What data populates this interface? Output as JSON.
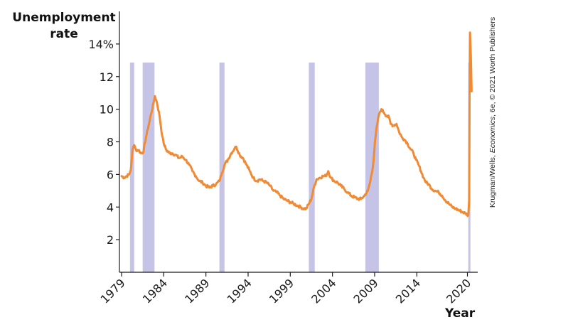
{
  "chart_data": {
    "type": "line",
    "ylabel_lines": [
      "Unemployment",
      "rate"
    ],
    "xlabel": "Year",
    "credit": {
      "prefix": "Krugman/Wells, ",
      "italic": "Economics",
      "suffix": ", 6e, © 2021 Worth Publishers"
    },
    "ylim": [
      0,
      16
    ],
    "xlim": [
      1979,
      2020.8
    ],
    "y_ticks": [
      {
        "value": 2,
        "label": "2"
      },
      {
        "value": 4,
        "label": "4"
      },
      {
        "value": 6,
        "label": "6"
      },
      {
        "value": 8,
        "label": "8"
      },
      {
        "value": 10,
        "label": "10"
      },
      {
        "value": 12,
        "label": "12"
      },
      {
        "value": 14,
        "label": "14%"
      }
    ],
    "x_ticks": [
      {
        "value": 1979,
        "label": "1979"
      },
      {
        "value": 1984,
        "label": "1984"
      },
      {
        "value": 1989,
        "label": "1989"
      },
      {
        "value": 1994,
        "label": "1994"
      },
      {
        "value": 1999,
        "label": "1999"
      },
      {
        "value": 2004,
        "label": "2004"
      },
      {
        "value": 2009,
        "label": "2009"
      },
      {
        "value": 2014,
        "label": "2014"
      },
      {
        "value": 2020,
        "label": "2020"
      }
    ],
    "grid": false,
    "recession_color": "#c6c4e6",
    "line_color": "#f08a34",
    "recessions": [
      {
        "start": 1980.0,
        "end": 1980.5
      },
      {
        "start": 1981.5,
        "end": 1982.9
      },
      {
        "start": 1990.6,
        "end": 1991.2
      },
      {
        "start": 2001.2,
        "end": 2001.9
      },
      {
        "start": 2007.9,
        "end": 2009.5
      },
      {
        "start": 2020.1,
        "end": 2020.35
      }
    ],
    "series": [
      {
        "values": [
          [
            1979.0,
            5.9
          ],
          [
            1979.3,
            5.8
          ],
          [
            1979.6,
            5.9
          ],
          [
            1979.9,
            6.0
          ],
          [
            1980.1,
            6.3
          ],
          [
            1980.3,
            7.5
          ],
          [
            1980.5,
            7.8
          ],
          [
            1980.7,
            7.5
          ],
          [
            1981.0,
            7.5
          ],
          [
            1981.3,
            7.3
          ],
          [
            1981.6,
            7.4
          ],
          [
            1981.9,
            8.3
          ],
          [
            1982.2,
            9.0
          ],
          [
            1982.5,
            9.7
          ],
          [
            1982.8,
            10.4
          ],
          [
            1982.95,
            10.8
          ],
          [
            1983.2,
            10.4
          ],
          [
            1983.5,
            9.6
          ],
          [
            1983.8,
            8.4
          ],
          [
            1984.0,
            7.9
          ],
          [
            1984.3,
            7.5
          ],
          [
            1984.7,
            7.3
          ],
          [
            1985.0,
            7.3
          ],
          [
            1985.4,
            7.2
          ],
          [
            1985.8,
            7.0
          ],
          [
            1986.2,
            7.1
          ],
          [
            1986.6,
            6.9
          ],
          [
            1987.0,
            6.6
          ],
          [
            1987.4,
            6.2
          ],
          [
            1987.8,
            5.9
          ],
          [
            1988.2,
            5.6
          ],
          [
            1988.6,
            5.5
          ],
          [
            1989.0,
            5.3
          ],
          [
            1989.4,
            5.2
          ],
          [
            1989.8,
            5.3
          ],
          [
            1990.2,
            5.4
          ],
          [
            1990.6,
            5.6
          ],
          [
            1990.9,
            6.1
          ],
          [
            1991.2,
            6.6
          ],
          [
            1991.6,
            6.9
          ],
          [
            1992.0,
            7.3
          ],
          [
            1992.4,
            7.6
          ],
          [
            1992.6,
            7.7
          ],
          [
            1993.0,
            7.2
          ],
          [
            1993.4,
            7.0
          ],
          [
            1993.8,
            6.6
          ],
          [
            1994.2,
            6.2
          ],
          [
            1994.6,
            5.8
          ],
          [
            1995.0,
            5.6
          ],
          [
            1995.4,
            5.7
          ],
          [
            1995.8,
            5.6
          ],
          [
            1996.2,
            5.5
          ],
          [
            1996.6,
            5.3
          ],
          [
            1997.0,
            5.0
          ],
          [
            1997.4,
            4.9
          ],
          [
            1997.8,
            4.7
          ],
          [
            1998.2,
            4.5
          ],
          [
            1998.6,
            4.4
          ],
          [
            1999.0,
            4.3
          ],
          [
            1999.4,
            4.2
          ],
          [
            1999.8,
            4.1
          ],
          [
            2000.2,
            4.0
          ],
          [
            2000.6,
            3.9
          ],
          [
            2000.9,
            3.9
          ],
          [
            2001.2,
            4.2
          ],
          [
            2001.5,
            4.5
          ],
          [
            2001.8,
            5.2
          ],
          [
            2002.1,
            5.7
          ],
          [
            2002.5,
            5.8
          ],
          [
            2002.9,
            5.9
          ],
          [
            2003.2,
            5.9
          ],
          [
            2003.5,
            6.2
          ],
          [
            2003.8,
            5.8
          ],
          [
            2004.2,
            5.6
          ],
          [
            2004.6,
            5.5
          ],
          [
            2005.0,
            5.3
          ],
          [
            2005.4,
            5.1
          ],
          [
            2005.8,
            4.9
          ],
          [
            2006.2,
            4.7
          ],
          [
            2006.6,
            4.6
          ],
          [
            2007.0,
            4.5
          ],
          [
            2007.4,
            4.5
          ],
          [
            2007.8,
            4.7
          ],
          [
            2008.2,
            5.0
          ],
          [
            2008.5,
            5.6
          ],
          [
            2008.8,
            6.5
          ],
          [
            2009.1,
            8.3
          ],
          [
            2009.4,
            9.4
          ],
          [
            2009.6,
            9.8
          ],
          [
            2009.8,
            10.0
          ],
          [
            2010.1,
            9.8
          ],
          [
            2010.4,
            9.6
          ],
          [
            2010.7,
            9.5
          ],
          [
            2010.9,
            9.1
          ],
          [
            2011.2,
            9.0
          ],
          [
            2011.6,
            9.1
          ],
          [
            2011.9,
            8.6
          ],
          [
            2012.2,
            8.3
          ],
          [
            2012.6,
            8.1
          ],
          [
            2012.9,
            7.9
          ],
          [
            2013.2,
            7.6
          ],
          [
            2013.6,
            7.3
          ],
          [
            2013.9,
            6.9
          ],
          [
            2014.2,
            6.6
          ],
          [
            2014.5,
            6.2
          ],
          [
            2014.8,
            5.8
          ],
          [
            2015.1,
            5.5
          ],
          [
            2015.4,
            5.4
          ],
          [
            2015.8,
            5.1
          ],
          [
            2016.2,
            5.0
          ],
          [
            2016.6,
            4.9
          ],
          [
            2017.0,
            4.7
          ],
          [
            2017.4,
            4.4
          ],
          [
            2017.8,
            4.2
          ],
          [
            2018.2,
            4.0
          ],
          [
            2018.6,
            3.9
          ],
          [
            2019.0,
            3.8
          ],
          [
            2019.4,
            3.7
          ],
          [
            2019.8,
            3.6
          ],
          [
            2020.1,
            3.5
          ],
          [
            2020.2,
            4.4
          ],
          [
            2020.25,
            11.0
          ],
          [
            2020.3,
            14.7
          ],
          [
            2020.4,
            13.3
          ],
          [
            2020.5,
            11.1
          ]
        ]
      }
    ]
  }
}
